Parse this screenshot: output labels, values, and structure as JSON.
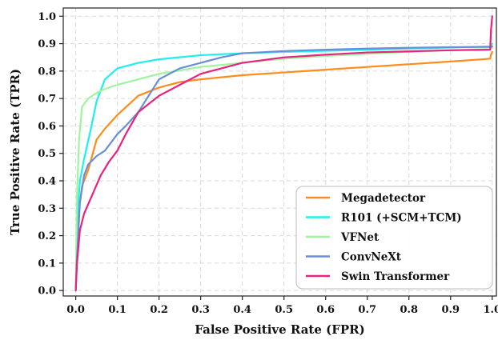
{
  "chart_data": {
    "type": "line",
    "title": "",
    "xlabel": "False Positive Rate (FPR)",
    "ylabel": "True Positive Rate (TPR)",
    "xlim": [
      -0.03,
      1.01
    ],
    "ylim": [
      -0.02,
      1.03
    ],
    "xticks": [
      "0.0",
      "0.1",
      "0.2",
      "0.3",
      "0.4",
      "0.5",
      "0.6",
      "0.7",
      "0.8",
      "0.9",
      "1.0"
    ],
    "yticks": [
      "0.0",
      "0.1",
      "0.2",
      "0.3",
      "0.4",
      "0.5",
      "0.6",
      "0.7",
      "0.8",
      "0.9",
      "1.0"
    ],
    "grid": true,
    "legend_position": "lower-right",
    "series": [
      {
        "name": "Megadetector",
        "color": "#ff8c1a",
        "x": [
          0,
          0.003,
          0.008,
          0.015,
          0.03,
          0.05,
          0.07,
          0.1,
          0.15,
          0.2,
          0.25,
          0.3,
          0.4,
          0.5,
          0.6,
          0.7,
          0.8,
          0.9,
          0.995,
          0.997,
          1.0
        ],
        "y": [
          0,
          0.15,
          0.3,
          0.38,
          0.44,
          0.55,
          0.59,
          0.64,
          0.71,
          0.74,
          0.76,
          0.77,
          0.785,
          0.795,
          0.805,
          0.815,
          0.825,
          0.835,
          0.845,
          0.86,
          0.87
        ]
      },
      {
        "name": "R101 (+SCM+TCM)",
        "color": "#1ef0f0",
        "x": [
          0,
          0.003,
          0.01,
          0.02,
          0.035,
          0.05,
          0.07,
          0.1,
          0.15,
          0.2,
          0.3,
          0.4,
          0.5,
          0.6,
          0.7,
          0.8,
          0.9,
          0.995,
          0.997,
          1.0
        ],
        "y": [
          0,
          0.25,
          0.4,
          0.48,
          0.58,
          0.69,
          0.77,
          0.81,
          0.83,
          0.843,
          0.858,
          0.865,
          0.87,
          0.874,
          0.878,
          0.882,
          0.886,
          0.89,
          0.895,
          0.9
        ]
      },
      {
        "name": "VFNet",
        "color": "#9ef59e",
        "x": [
          0,
          0.003,
          0.008,
          0.015,
          0.03,
          0.05,
          0.07,
          0.1,
          0.15,
          0.2,
          0.3,
          0.4,
          0.5,
          0.6,
          0.7,
          0.8,
          0.9,
          0.995,
          1.0
        ],
        "y": [
          0,
          0.35,
          0.55,
          0.67,
          0.7,
          0.72,
          0.735,
          0.75,
          0.77,
          0.79,
          0.815,
          0.83,
          0.845,
          0.855,
          0.863,
          0.87,
          0.876,
          0.88,
          0.885
        ]
      },
      {
        "name": "ConvNeXt",
        "color": "#6a8fd8",
        "x": [
          0,
          0.003,
          0.01,
          0.02,
          0.03,
          0.05,
          0.07,
          0.09,
          0.1,
          0.12,
          0.15,
          0.2,
          0.25,
          0.3,
          0.35,
          0.4,
          0.5,
          0.6,
          0.7,
          0.8,
          0.9,
          0.995,
          1.0
        ],
        "y": [
          0,
          0.12,
          0.32,
          0.42,
          0.46,
          0.49,
          0.51,
          0.55,
          0.57,
          0.6,
          0.65,
          0.77,
          0.81,
          0.83,
          0.85,
          0.865,
          0.873,
          0.878,
          0.882,
          0.885,
          0.887,
          0.888,
          0.89
        ]
      },
      {
        "name": "Swin Transformer",
        "color": "#e8237f",
        "x": [
          0,
          0.003,
          0.01,
          0.02,
          0.04,
          0.06,
          0.08,
          0.1,
          0.12,
          0.15,
          0.2,
          0.25,
          0.3,
          0.35,
          0.4,
          0.5,
          0.6,
          0.7,
          0.8,
          0.9,
          0.995,
          0.997,
          1.0
        ],
        "y": [
          0,
          0.1,
          0.22,
          0.28,
          0.35,
          0.42,
          0.47,
          0.51,
          0.57,
          0.65,
          0.71,
          0.75,
          0.79,
          0.81,
          0.83,
          0.85,
          0.86,
          0.868,
          0.872,
          0.876,
          0.878,
          0.95,
          1.0
        ]
      }
    ]
  }
}
